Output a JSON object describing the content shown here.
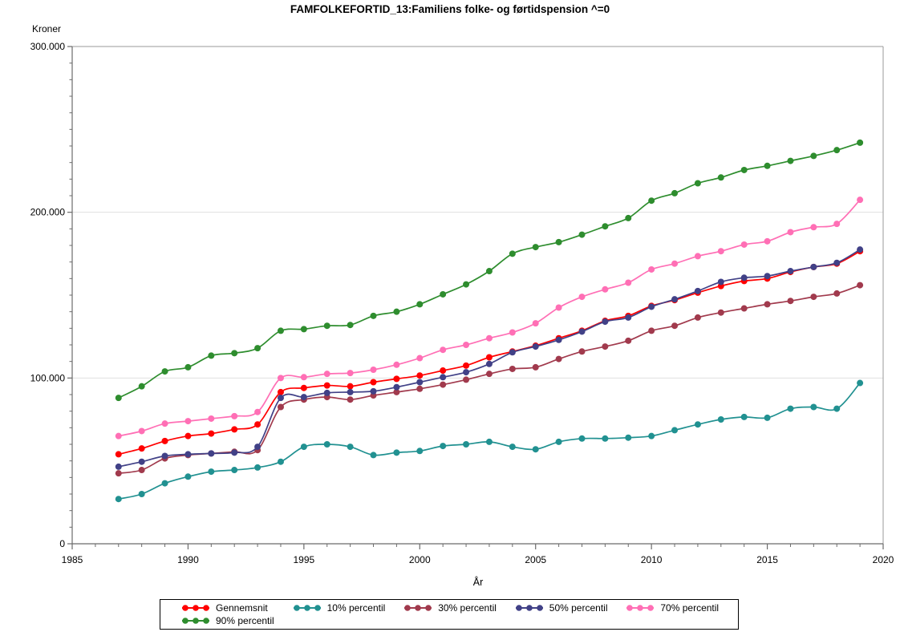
{
  "title": "FAMFOLKEFORTID_13:Familiens folke- og førtidspension ^=0",
  "chart_data": {
    "type": "line",
    "title": "FAMFOLKEFORTID_13:Familiens folke- og førtidspension ^=0",
    "xlabel": "År",
    "ylabel": "Kroner",
    "xlim": [
      1985,
      2020
    ],
    "ylim": [
      0,
      300000
    ],
    "x_major_ticks": [
      1985,
      1990,
      1995,
      2000,
      2005,
      2010,
      2015,
      2020
    ],
    "x_minor_step": 1,
    "y_major_ticks": [
      0,
      100000,
      200000,
      300000
    ],
    "y_tick_labels": [
      "0",
      "100.000",
      "200.000",
      "300.000"
    ],
    "y_minor_step": 10000,
    "grid": "horizontal major gridlines only",
    "legend_position": "bottom",
    "marker": "filled-circle",
    "colors": {
      "axis": "#6b6b6b",
      "frame": "#9a9a9a",
      "gridline": "#e0e0e0"
    },
    "x": [
      1987,
      1988,
      1989,
      1990,
      1991,
      1992,
      1993,
      1994,
      1995,
      1996,
      1997,
      1998,
      1999,
      2000,
      2001,
      2002,
      2003,
      2004,
      2005,
      2006,
      2007,
      2008,
      2009,
      2010,
      2011,
      2012,
      2013,
      2014,
      2015,
      2016,
      2017,
      2018,
      2019
    ],
    "series": [
      {
        "name": "Gennemsnit",
        "color": "#ff0000",
        "values": [
          54000,
          57500,
          62000,
          65000,
          66500,
          69000,
          72000,
          91500,
          94000,
          95500,
          95000,
          97500,
          99500,
          101500,
          104500,
          107500,
          112500,
          116000,
          119500,
          124000,
          128500,
          134500,
          137500,
          143500,
          147000,
          151500,
          155500,
          158500,
          160000,
          164000,
          167000,
          169000,
          176500
        ]
      },
      {
        "name": "10% percentil",
        "color": "#219191",
        "values": [
          27000,
          30000,
          36500,
          40500,
          43500,
          44500,
          46000,
          49500,
          58500,
          60000,
          58500,
          53500,
          55000,
          56000,
          59000,
          60000,
          61500,
          58500,
          57000,
          61500,
          63500,
          63500,
          64000,
          65000,
          68500,
          72000,
          75000,
          76500,
          76000,
          81500,
          82500,
          81500,
          97000
        ]
      },
      {
        "name": "30% percentil",
        "color": "#a13a4d",
        "values": [
          42500,
          44500,
          51500,
          53500,
          54500,
          55500,
          56500,
          82500,
          87000,
          88500,
          87000,
          89500,
          91500,
          93500,
          96000,
          99000,
          102500,
          105500,
          106500,
          111500,
          116000,
          119000,
          122500,
          128500,
          131500,
          136500,
          139500,
          142000,
          144500,
          146500,
          149000,
          151000,
          156000
        ]
      },
      {
        "name": "50% percentil",
        "color": "#414187",
        "values": [
          46500,
          49500,
          53000,
          54000,
          54500,
          55000,
          58500,
          88000,
          88500,
          91000,
          91500,
          92000,
          94500,
          97500,
          100500,
          103500,
          108500,
          115500,
          119000,
          123000,
          128000,
          134000,
          136500,
          143000,
          147500,
          152500,
          158000,
          160500,
          161500,
          164500,
          167000,
          169500,
          177500
        ]
      },
      {
        "name": "70% percentil",
        "color": "#ff6fb5",
        "values": [
          65000,
          68000,
          72500,
          74000,
          75500,
          77000,
          79500,
          100000,
          100500,
          102500,
          103000,
          105000,
          108000,
          112000,
          117000,
          120000,
          124000,
          127500,
          133000,
          142500,
          149000,
          153500,
          157500,
          165500,
          169000,
          173500,
          176500,
          180500,
          182500,
          188000,
          191000,
          193000,
          207500
        ]
      },
      {
        "name": "90% percentil",
        "color": "#2e8d2e",
        "values": [
          88000,
          95000,
          104000,
          106500,
          113500,
          115000,
          118000,
          128500,
          129500,
          131500,
          132000,
          137500,
          140000,
          144500,
          150500,
          156500,
          164500,
          175000,
          179000,
          182000,
          186500,
          191500,
          196500,
          207000,
          211500,
          217500,
          221000,
          225500,
          228000,
          231000,
          234000,
          237500,
          242000
        ]
      }
    ],
    "legend_rows": [
      [
        "Gennemsnit",
        "10% percentil",
        "30% percentil",
        "50% percentil",
        "70% percentil"
      ],
      [
        "90% percentil"
      ]
    ]
  }
}
